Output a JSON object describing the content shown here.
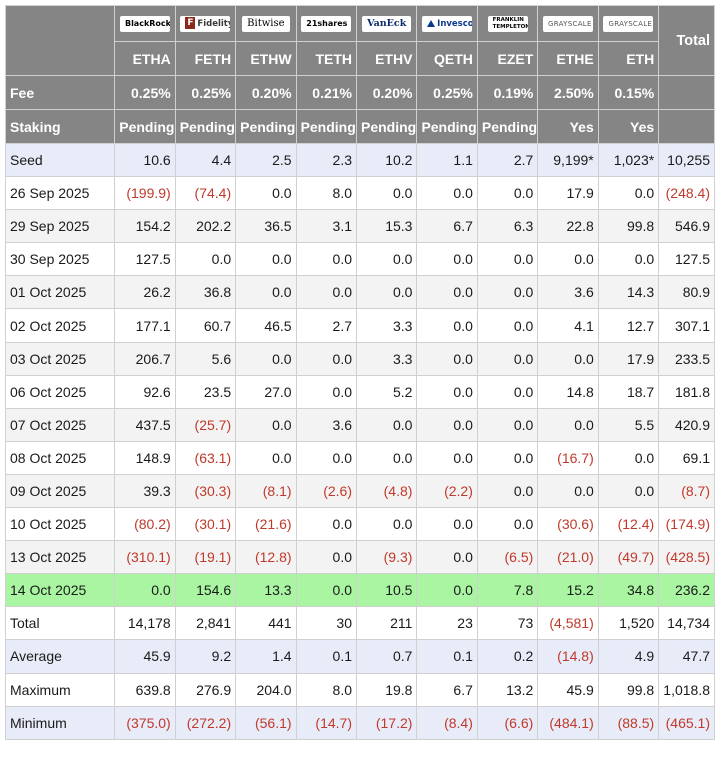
{
  "columns": [
    {
      "issuer": "BlackRock",
      "ticker": "ETHA",
      "fee": "0.25%",
      "staking": "Pending"
    },
    {
      "issuer": "Fidelity",
      "ticker": "FETH",
      "fee": "0.25%",
      "staking": "Pending"
    },
    {
      "issuer": "Bitwise",
      "ticker": "ETHW",
      "fee": "0.20%",
      "staking": "Pending"
    },
    {
      "issuer": "21shares",
      "ticker": "TETH",
      "fee": "0.21%",
      "staking": "Pending"
    },
    {
      "issuer": "VanEck",
      "ticker": "ETHV",
      "fee": "0.20%",
      "staking": "Pending"
    },
    {
      "issuer": "Invesco",
      "ticker": "QETH",
      "fee": "0.25%",
      "staking": "Pending"
    },
    {
      "issuer": "FRANKLIN TEMPLETON",
      "ticker": "EZET",
      "fee": "0.19%",
      "staking": "Pending"
    },
    {
      "issuer": "GRAYSCALE",
      "ticker": "ETHE",
      "fee": "2.50%",
      "staking": "Yes"
    },
    {
      "issuer": "GRAYSCALE",
      "ticker": "ETH",
      "fee": "0.15%",
      "staking": "Yes"
    }
  ],
  "header": {
    "total_label": "Total",
    "fee_label": "Fee",
    "staking_label": "Staking"
  },
  "rows": [
    {
      "label": "Seed",
      "values": [
        "10.6",
        "4.4",
        "2.5",
        "2.3",
        "10.2",
        "1.1",
        "2.7",
        "9,199*",
        "1,023*",
        "10,255"
      ]
    },
    {
      "label": "26 Sep 2025",
      "values": [
        "(199.9)",
        "(74.4)",
        "0.0",
        "8.0",
        "0.0",
        "0.0",
        "0.0",
        "17.9",
        "0.0",
        "(248.4)"
      ]
    },
    {
      "label": "29 Sep 2025",
      "values": [
        "154.2",
        "202.2",
        "36.5",
        "3.1",
        "15.3",
        "6.7",
        "6.3",
        "22.8",
        "99.8",
        "546.9"
      ]
    },
    {
      "label": "30 Sep 2025",
      "values": [
        "127.5",
        "0.0",
        "0.0",
        "0.0",
        "0.0",
        "0.0",
        "0.0",
        "0.0",
        "0.0",
        "127.5"
      ]
    },
    {
      "label": "01 Oct 2025",
      "values": [
        "26.2",
        "36.8",
        "0.0",
        "0.0",
        "0.0",
        "0.0",
        "0.0",
        "3.6",
        "14.3",
        "80.9"
      ]
    },
    {
      "label": "02 Oct 2025",
      "values": [
        "177.1",
        "60.7",
        "46.5",
        "2.7",
        "3.3",
        "0.0",
        "0.0",
        "4.1",
        "12.7",
        "307.1"
      ]
    },
    {
      "label": "03 Oct 2025",
      "values": [
        "206.7",
        "5.6",
        "0.0",
        "0.0",
        "3.3",
        "0.0",
        "0.0",
        "0.0",
        "17.9",
        "233.5"
      ]
    },
    {
      "label": "06 Oct 2025",
      "values": [
        "92.6",
        "23.5",
        "27.0",
        "0.0",
        "5.2",
        "0.0",
        "0.0",
        "14.8",
        "18.7",
        "181.8"
      ]
    },
    {
      "label": "07 Oct 2025",
      "values": [
        "437.5",
        "(25.7)",
        "0.0",
        "3.6",
        "0.0",
        "0.0",
        "0.0",
        "0.0",
        "5.5",
        "420.9"
      ]
    },
    {
      "label": "08 Oct 2025",
      "values": [
        "148.9",
        "(63.1)",
        "0.0",
        "0.0",
        "0.0",
        "0.0",
        "0.0",
        "(16.7)",
        "0.0",
        "69.1"
      ]
    },
    {
      "label": "09 Oct 2025",
      "values": [
        "39.3",
        "(30.3)",
        "(8.1)",
        "(2.6)",
        "(4.8)",
        "(2.2)",
        "0.0",
        "0.0",
        "0.0",
        "(8.7)"
      ]
    },
    {
      "label": "10 Oct 2025",
      "values": [
        "(80.2)",
        "(30.1)",
        "(21.6)",
        "0.0",
        "0.0",
        "0.0",
        "0.0",
        "(30.6)",
        "(12.4)",
        "(174.9)"
      ]
    },
    {
      "label": "13 Oct 2025",
      "values": [
        "(310.1)",
        "(19.1)",
        "(12.8)",
        "0.0",
        "(9.3)",
        "0.0",
        "(6.5)",
        "(21.0)",
        "(49.7)",
        "(428.5)"
      ]
    },
    {
      "label": "14 Oct 2025",
      "values": [
        "0.0",
        "154.6",
        "13.3",
        "0.0",
        "10.5",
        "0.0",
        "7.8",
        "15.2",
        "34.8",
        "236.2"
      ]
    },
    {
      "label": "Total",
      "values": [
        "14,178",
        "2,841",
        "441",
        "30",
        "211",
        "23",
        "73",
        "(4,581)",
        "1,520",
        "14,734"
      ]
    },
    {
      "label": "Average",
      "values": [
        "45.9",
        "9.2",
        "1.4",
        "0.1",
        "0.7",
        "0.1",
        "0.2",
        "(14.8)",
        "4.9",
        "47.7"
      ]
    },
    {
      "label": "Maximum",
      "values": [
        "639.8",
        "276.9",
        "204.0",
        "8.0",
        "19.8",
        "6.7",
        "13.2",
        "45.9",
        "99.8",
        "1,018.8"
      ]
    },
    {
      "label": "Minimum",
      "values": [
        "(375.0)",
        "(272.2)",
        "(56.1)",
        "(14.7)",
        "(17.2)",
        "(8.4)",
        "(6.6)",
        "(484.1)",
        "(88.5)",
        "(465.1)"
      ]
    }
  ],
  "colors": {
    "header_bg": "#858585",
    "highlight_row": "#a9f5a1",
    "seed_row": "#e8ecf8",
    "negative": "#c0392b"
  }
}
